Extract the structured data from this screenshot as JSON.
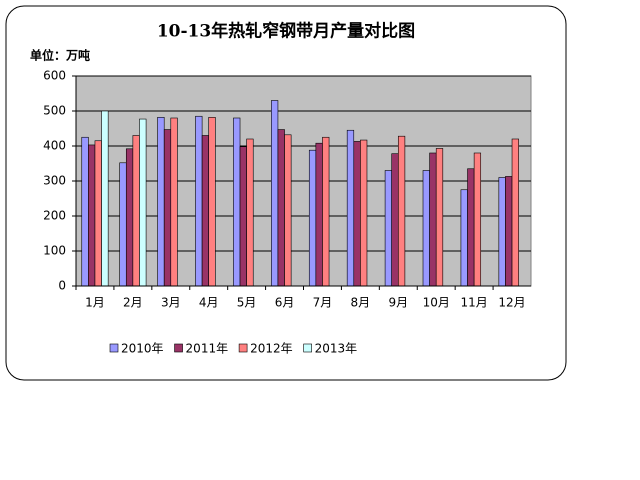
{
  "chart_data": {
    "type": "bar",
    "title": "10-13年热轧窄钢带月产量对比图",
    "y_label": "单位：万吨",
    "categories": [
      "1月",
      "2月",
      "3月",
      "4月",
      "5月",
      "6月",
      "7月",
      "8月",
      "9月",
      "10月",
      "11月",
      "12月"
    ],
    "series": [
      {
        "name": "2010年",
        "color": "#9999ff",
        "values": [
          425,
          352,
          482,
          485,
          480,
          530,
          388,
          445,
          330,
          330,
          275,
          310
        ]
      },
      {
        "name": "2011年",
        "color": "#993366",
        "values": [
          403,
          392,
          447,
          430,
          398,
          447,
          408,
          413,
          378,
          380,
          335,
          313
        ]
      },
      {
        "name": "2012年",
        "color": "#ff8080",
        "values": [
          415,
          430,
          480,
          482,
          420,
          432,
          425,
          417,
          428,
          393,
          380,
          420
        ]
      },
      {
        "name": "2013年",
        "color": "#ccffff",
        "values": [
          500,
          477,
          null,
          null,
          null,
          null,
          null,
          null,
          null,
          null,
          null,
          null
        ]
      }
    ],
    "ylim": [
      0,
      600
    ],
    "yticks": [
      0,
      100,
      200,
      300,
      400,
      500,
      600
    ],
    "grid": true,
    "plot_background": "#c0c0c0"
  }
}
